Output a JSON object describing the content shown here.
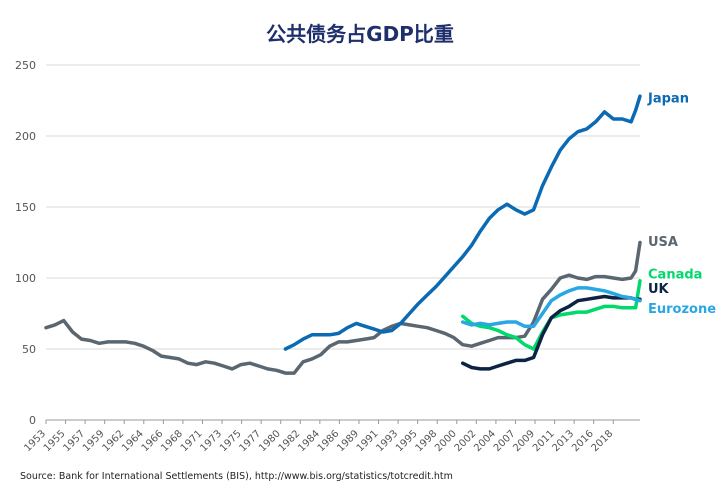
{
  "chart_data": {
    "type": "line",
    "title": "公共债务占GDP比重",
    "xlabel": "",
    "ylabel": "",
    "xlim": [
      1953,
      2020
    ],
    "ylim": [
      0,
      250
    ],
    "yticks": [
      0,
      50,
      100,
      150,
      200,
      250
    ],
    "xtick_labels": [
      "1953",
      "1955",
      "1957",
      "1959",
      "1962",
      "1964",
      "1966",
      "1968",
      "1971",
      "1973",
      "1975",
      "1977",
      "1980",
      "1982",
      "1984",
      "1986",
      "1989",
      "1991",
      "1993",
      "1995",
      "1998",
      "2000",
      "2002",
      "2004",
      "2007",
      "2009",
      "2011",
      "2013",
      "2016",
      "2018"
    ],
    "grid": "horizontal",
    "legend": "direct labels at right end of lines",
    "source": "Source: Bank for International Settlements (BIS), http://www.bis.org/statistics/totcredit.htm",
    "series": [
      {
        "name": "USA",
        "color": "#5a6670",
        "x": [
          1953,
          1954,
          1955,
          1956,
          1957,
          1958,
          1959,
          1960,
          1961,
          1962,
          1963,
          1964,
          1965,
          1966,
          1967,
          1968,
          1969,
          1970,
          1971,
          1972,
          1973,
          1974,
          1975,
          1976,
          1977,
          1978,
          1979,
          1980,
          1981,
          1982,
          1983,
          1984,
          1985,
          1986,
          1987,
          1988,
          1989,
          1990,
          1991,
          1992,
          1993,
          1994,
          1995,
          1996,
          1997,
          1998,
          1999,
          2000,
          2001,
          2002,
          2003,
          2004,
          2005,
          2006,
          2007,
          2008,
          2009,
          2010,
          2011,
          2012,
          2013,
          2014,
          2015,
          2016,
          2017,
          2018,
          2019,
          2019.5,
          2020
        ],
        "values": [
          65,
          67,
          70,
          62,
          57,
          56,
          54,
          55,
          55,
          55,
          54,
          52,
          49,
          45,
          44,
          43,
          40,
          39,
          41,
          40,
          38,
          36,
          39,
          40,
          38,
          36,
          35,
          33,
          33,
          41,
          43,
          46,
          52,
          55,
          55,
          56,
          57,
          58,
          63,
          66,
          68,
          67,
          66,
          65,
          63,
          61,
          58,
          53,
          52,
          54,
          56,
          58,
          58,
          58,
          59,
          69,
          85,
          92,
          100,
          102,
          100,
          99,
          101,
          101,
          100,
          99,
          100,
          105,
          125
        ]
      },
      {
        "name": "Japan",
        "color": "#0a6ab3",
        "x": [
          1980,
          1981,
          1982,
          1983,
          1984,
          1985,
          1986,
          1987,
          1988,
          1989,
          1990,
          1991,
          1992,
          1993,
          1994,
          1995,
          1996,
          1997,
          1998,
          1999,
          2000,
          2001,
          2002,
          2003,
          2004,
          2005,
          2006,
          2007,
          2008,
          2009,
          2010,
          2011,
          2012,
          2013,
          2014,
          2015,
          2016,
          2017,
          2018,
          2019,
          2019.5,
          2020
        ],
        "values": [
          50,
          53,
          57,
          60,
          60,
          60,
          61,
          65,
          68,
          66,
          64,
          62,
          63,
          68,
          75,
          82,
          88,
          94,
          101,
          108,
          115,
          123,
          133,
          142,
          148,
          152,
          148,
          145,
          148,
          165,
          178,
          190,
          198,
          203,
          205,
          210,
          217,
          212,
          212,
          210,
          218,
          228
        ]
      },
      {
        "name": "Canada",
        "color": "#00d96b",
        "x": [
          2000,
          2001,
          2002,
          2003,
          2004,
          2005,
          2006,
          2007,
          2008,
          2009,
          2010,
          2011,
          2012,
          2013,
          2014,
          2015,
          2016,
          2017,
          2018,
          2019,
          2019.5,
          2020
        ],
        "values": [
          73,
          68,
          66,
          65,
          63,
          60,
          58,
          53,
          50,
          62,
          72,
          74,
          75,
          76,
          76,
          78,
          80,
          80,
          79,
          79,
          79,
          98
        ]
      },
      {
        "name": "UK",
        "color": "#0d2344",
        "x": [
          2000,
          2001,
          2002,
          2003,
          2004,
          2005,
          2006,
          2007,
          2008,
          2009,
          2010,
          2011,
          2012,
          2013,
          2014,
          2015,
          2016,
          2017,
          2018,
          2019,
          2019.5,
          2020
        ],
        "values": [
          40,
          37,
          36,
          36,
          38,
          40,
          42,
          42,
          44,
          60,
          72,
          77,
          80,
          84,
          85,
          86,
          87,
          86,
          86,
          86,
          85,
          85
        ]
      },
      {
        "name": "Eurozone",
        "color": "#29a7e3",
        "x": [
          2000,
          2001,
          2002,
          2003,
          2004,
          2005,
          2006,
          2007,
          2008,
          2009,
          2010,
          2011,
          2012,
          2013,
          2014,
          2015,
          2016,
          2017,
          2018,
          2019,
          2019.5,
          2020
        ],
        "values": [
          69,
          67,
          68,
          67,
          68,
          69,
          69,
          66,
          66,
          75,
          84,
          88,
          91,
          93,
          93,
          92,
          91,
          89,
          87,
          86,
          85,
          84
        ]
      }
    ],
    "series_label_positions": {
      "Japan": 227,
      "USA": 126,
      "Canada": 103,
      "UK": 93,
      "Eurozone": 79
    }
  }
}
